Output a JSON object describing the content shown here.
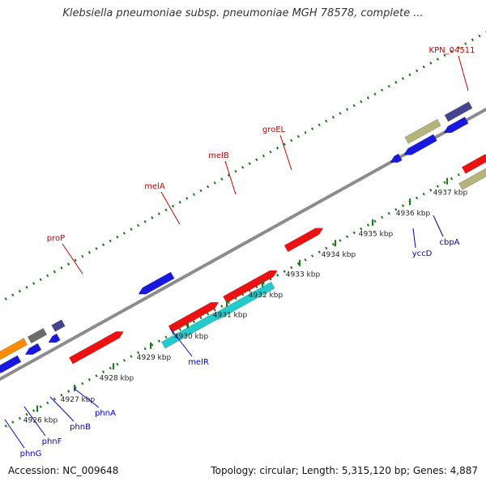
{
  "title": "Klebsiella pneumoniae subsp. pneumoniae MGH 78578, complete ...",
  "footer": {
    "accession": "Accession: NC_009648",
    "summary": "Topology: circular; Length: 5,315,120 bp; Genes: 4,887"
  },
  "colors": {
    "backbone": "#8c8c8c",
    "tick_major": "#1a7a1a",
    "label_forward": "#cc0000",
    "label_reverse": "#0000cc",
    "gene_red": "#ee1111",
    "gene_cyan": "#22cccc",
    "gene_blue": "#1818e0",
    "gene_navy": "#44448f",
    "gene_khaki": "#b4b47c",
    "gene_gray": "#6b6b6b",
    "gene_orange": "#ff8c00"
  },
  "scale": {
    "unit": "kbp",
    "tick_labels": [
      "4926 kbp",
      "4927 kbp",
      "4928 kbp",
      "4929 kbp",
      "4930 kbp",
      "4931 kbp",
      "4932 kbp",
      "4933 kbp",
      "4934 kbp",
      "4935 kbp",
      "4936 kbp",
      "4937 kbp"
    ]
  },
  "genes": [
    {
      "label": "proP",
      "strand": "forward",
      "color": "gene_red"
    },
    {
      "label": "melA",
      "strand": "forward",
      "color": "gene_red"
    },
    {
      "label": "melB",
      "strand": "forward",
      "color": "gene_red"
    },
    {
      "label": "groEL",
      "strand": "forward",
      "color": "gene_red"
    },
    {
      "label": "KPN_04511",
      "strand": "forward",
      "color": "gene_red"
    },
    {
      "label": "melR",
      "strand": "reverse",
      "color": "gene_blue"
    },
    {
      "label": "phnA",
      "strand": "reverse",
      "color": "gene_blue"
    },
    {
      "label": "phnB",
      "strand": "reverse",
      "color": "gene_blue"
    },
    {
      "label": "phnF",
      "strand": "reverse",
      "color": "gene_gray"
    },
    {
      "label": "phnG",
      "strand": "reverse",
      "color": "gene_blue"
    },
    {
      "label": "yccD",
      "strand": "reverse",
      "color": "gene_blue"
    },
    {
      "label": "cbpA",
      "strand": "reverse",
      "color": "gene_navy"
    }
  ]
}
